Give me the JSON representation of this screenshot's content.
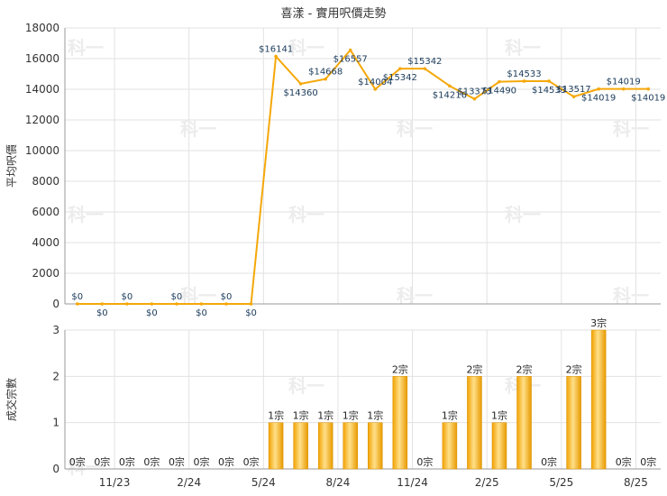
{
  "chart_data": [
    {
      "type": "line",
      "title": "喜漾 - 實用呎價走勢",
      "ylabel": "平均呎價",
      "ylim": [
        0,
        18000
      ],
      "yticks": [
        "0",
        "2000",
        "4000",
        "6000",
        "8000",
        "10000",
        "12000",
        "14000",
        "16000",
        "18000"
      ],
      "grid": true,
      "color": "#f5a80a",
      "points": [
        {
          "value": 0,
          "label": "$0"
        },
        {
          "value": 0,
          "label": "$0"
        },
        {
          "value": 0,
          "label": "$0"
        },
        {
          "value": 0,
          "label": "$0"
        },
        {
          "value": 0,
          "label": "$0"
        },
        {
          "value": 0,
          "label": "$0"
        },
        {
          "value": 0,
          "label": "$0"
        },
        {
          "value": 0,
          "label": "$0"
        },
        {
          "value": 16141,
          "label": "$16141"
        },
        {
          "value": 14360,
          "label": "$14360"
        },
        {
          "value": 14668,
          "label": "$14668"
        },
        {
          "value": 16557,
          "label": "$16557"
        },
        {
          "value": 14004,
          "label": "$14004"
        },
        {
          "value": 15342,
          "label": "$15342"
        },
        {
          "value": 15342,
          "label": "$15342"
        },
        {
          "value": 14216,
          "label": "$14216"
        },
        {
          "value": 13373,
          "label": "$13373"
        },
        {
          "value": 14490,
          "label": "$14490"
        },
        {
          "value": 14533,
          "label": "$14533"
        },
        {
          "value": 14533,
          "label": "$14533"
        },
        {
          "value": 13517,
          "label": "$13517"
        },
        {
          "value": 14019,
          "label": "$14019"
        },
        {
          "value": 14019,
          "label": "$14019"
        },
        {
          "value": 14019,
          "label": "$14019"
        }
      ]
    },
    {
      "type": "bar",
      "ylabel": "成交宗數",
      "ylim": [
        0,
        3
      ],
      "yticks": [
        "0",
        "1",
        "2",
        "3"
      ],
      "grid": true,
      "color": "#f5a80a",
      "xtick_labels": [
        "11/23",
        "2/24",
        "5/24",
        "8/24",
        "11/24",
        "2/25",
        "5/25",
        "8/25"
      ],
      "values": [
        0,
        0,
        0,
        0,
        0,
        0,
        0,
        0,
        1,
        1,
        1,
        1,
        1,
        2,
        0,
        1,
        2,
        1,
        2,
        0,
        2,
        3,
        0,
        0
      ],
      "labels": [
        "0宗",
        "0宗",
        "0宗",
        "0宗",
        "0宗",
        "0宗",
        "0宗",
        "0宗",
        "1宗",
        "1宗",
        "1宗",
        "1宗",
        "1宗",
        "2宗",
        "0宗",
        "1宗",
        "2宗",
        "1宗",
        "2宗",
        "0宗",
        "2宗",
        "3宗",
        "0宗",
        "0宗"
      ]
    }
  ],
  "watermark": "科一"
}
